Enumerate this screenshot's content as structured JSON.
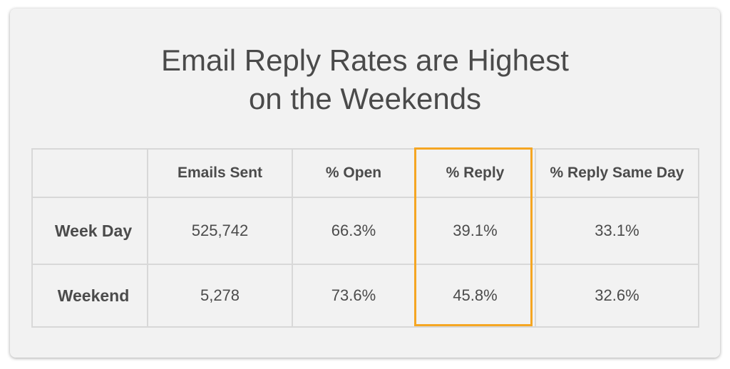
{
  "title_lines": [
    "Email Reply Rates are Highest",
    "on the Weekends"
  ],
  "highlight_color": "#f5a623",
  "highlighted_column": "% Reply",
  "chart_data": {
    "type": "table",
    "title": "Email Reply Rates are Highest on the Weekends",
    "columns": [
      "Emails Sent",
      "% Open",
      "% Reply",
      "% Reply Same Day"
    ],
    "rows": [
      {
        "label": "Week Day",
        "cells": [
          "525,742",
          "66.3%",
          "39.1%",
          "33.1%"
        ]
      },
      {
        "label": "Weekend",
        "cells": [
          "5,278",
          "73.6%",
          "45.8%",
          "32.6%"
        ]
      }
    ]
  }
}
